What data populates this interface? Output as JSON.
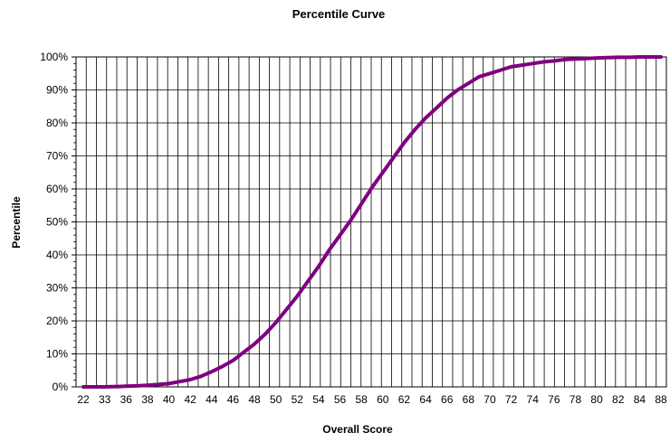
{
  "chart_data": {
    "type": "line",
    "title": "Percentile Curve",
    "xlabel": "Overall Score",
    "ylabel": "Percentile",
    "x_tick_labels": [
      "22",
      "33",
      "36",
      "38",
      "40",
      "42",
      "44",
      "46",
      "48",
      "50",
      "52",
      "54",
      "56",
      "58",
      "60",
      "62",
      "64",
      "66",
      "68",
      "70",
      "72",
      "74",
      "76",
      "78",
      "80",
      "82",
      "84",
      "88"
    ],
    "y_tick_labels": [
      "0%",
      "10%",
      "20%",
      "30%",
      "40%",
      "50%",
      "60%",
      "70%",
      "80%",
      "90%",
      "100%"
    ],
    "ylim": [
      0,
      100
    ],
    "grid": true,
    "legend": "none",
    "line_color": "#800080",
    "series": [
      {
        "x": [
          22,
          33,
          35,
          36,
          37,
          38,
          39,
          40,
          41,
          42,
          43,
          44,
          45,
          46,
          47,
          48,
          49,
          50,
          51,
          52,
          53,
          54,
          55,
          56,
          57,
          58,
          59,
          60,
          61,
          62,
          63,
          64,
          65,
          66,
          67,
          68,
          69,
          70,
          71,
          72,
          73,
          74,
          75,
          76,
          77,
          78,
          79,
          80,
          81,
          82,
          83,
          84,
          85,
          86,
          88
        ],
        "values": [
          0,
          0,
          0.1,
          0.2,
          0.3,
          0.5,
          0.7,
          1,
          1.6,
          2.2,
          3.2,
          4.6,
          6.2,
          8,
          10.5,
          13,
          16,
          19.5,
          23.5,
          27.5,
          32,
          36.5,
          41.5,
          46,
          50.5,
          55.5,
          60.5,
          65,
          69.5,
          74,
          78,
          81.5,
          84.5,
          87.5,
          90,
          92,
          94,
          95,
          96,
          97,
          97.5,
          98,
          98.5,
          98.8,
          99.2,
          99.4,
          99.5,
          99.7,
          99.8,
          99.9,
          99.9,
          100,
          100,
          100,
          100
        ]
      }
    ]
  }
}
